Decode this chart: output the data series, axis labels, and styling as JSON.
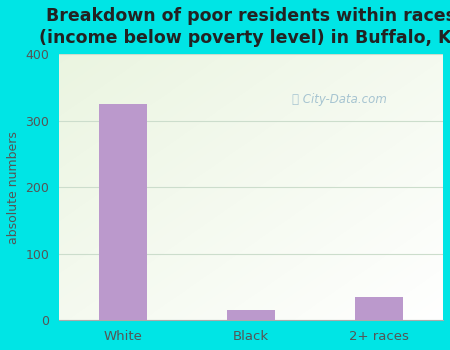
{
  "title": "Breakdown of poor residents within races\n(income below poverty level) in Buffalo, KY",
  "categories": [
    "White",
    "Black",
    "2+ races"
  ],
  "values": [
    325,
    15,
    35
  ],
  "bar_color": "#bb99cc",
  "ylabel": "absolute numbers",
  "ylim": [
    0,
    400
  ],
  "yticks": [
    0,
    100,
    200,
    300,
    400
  ],
  "bg_outer": "#00e5e5",
  "title_fontsize": 12.5,
  "ylabel_fontsize": 9,
  "watermark": "City-Data.com",
  "watermark_color": "#99bbcc",
  "grid_color": "#ccddcc"
}
